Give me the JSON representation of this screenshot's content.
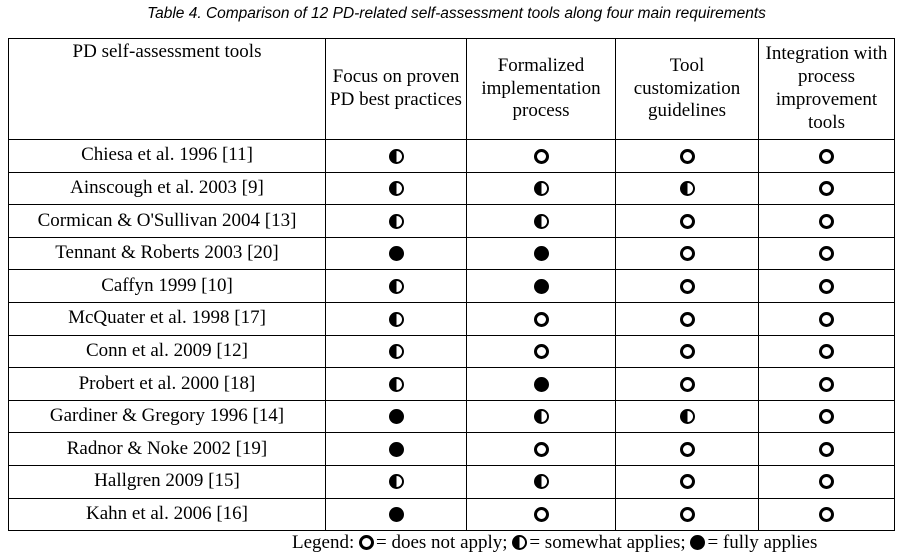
{
  "caption": "Table 4. Comparison of 12 PD-related self-assessment tools along four main requirements",
  "table": {
    "headers": [
      "PD self-assessment tools",
      "Focus on proven PD best practices",
      "Formalized implementation process",
      "Tool customization guidelines",
      "Integration with process improvement tools"
    ],
    "rows": [
      {
        "tool": "Chiesa et al. 1996 [11]",
        "values": [
          "some",
          "none",
          "none",
          "none"
        ]
      },
      {
        "tool": "Ainscough et al. 2003 [9]",
        "values": [
          "some",
          "some",
          "some",
          "none"
        ]
      },
      {
        "tool": "Cormican & O'Sullivan 2004 [13]",
        "values": [
          "some",
          "some",
          "none",
          "none"
        ]
      },
      {
        "tool": "Tennant & Roberts 2003 [20]",
        "values": [
          "full",
          "full",
          "none",
          "none"
        ]
      },
      {
        "tool": "Caffyn 1999 [10]",
        "values": [
          "some",
          "full",
          "none",
          "none"
        ]
      },
      {
        "tool": "McQuater et al. 1998 [17]",
        "values": [
          "some",
          "none",
          "none",
          "none"
        ]
      },
      {
        "tool": "Conn et al. 2009 [12]",
        "values": [
          "some",
          "none",
          "none",
          "none"
        ]
      },
      {
        "tool": "Probert et al. 2000 [18]",
        "values": [
          "some",
          "full",
          "none",
          "none"
        ]
      },
      {
        "tool": "Gardiner & Gregory 1996 [14]",
        "values": [
          "full",
          "some",
          "some",
          "none"
        ]
      },
      {
        "tool": "Radnor & Noke 2002 [19]",
        "values": [
          "full",
          "none",
          "none",
          "none"
        ]
      },
      {
        "tool": "Hallgren 2009 [15]",
        "values": [
          "some",
          "some",
          "none",
          "none"
        ]
      },
      {
        "tool": "Kahn et al. 2006 [16]",
        "values": [
          "full",
          "none",
          "none",
          "none"
        ]
      }
    ]
  },
  "legend": {
    "prefix": "Legend:",
    "none_text": "= does not apply;",
    "some_text": "= somewhat applies;",
    "full_text": "= fully applies"
  }
}
